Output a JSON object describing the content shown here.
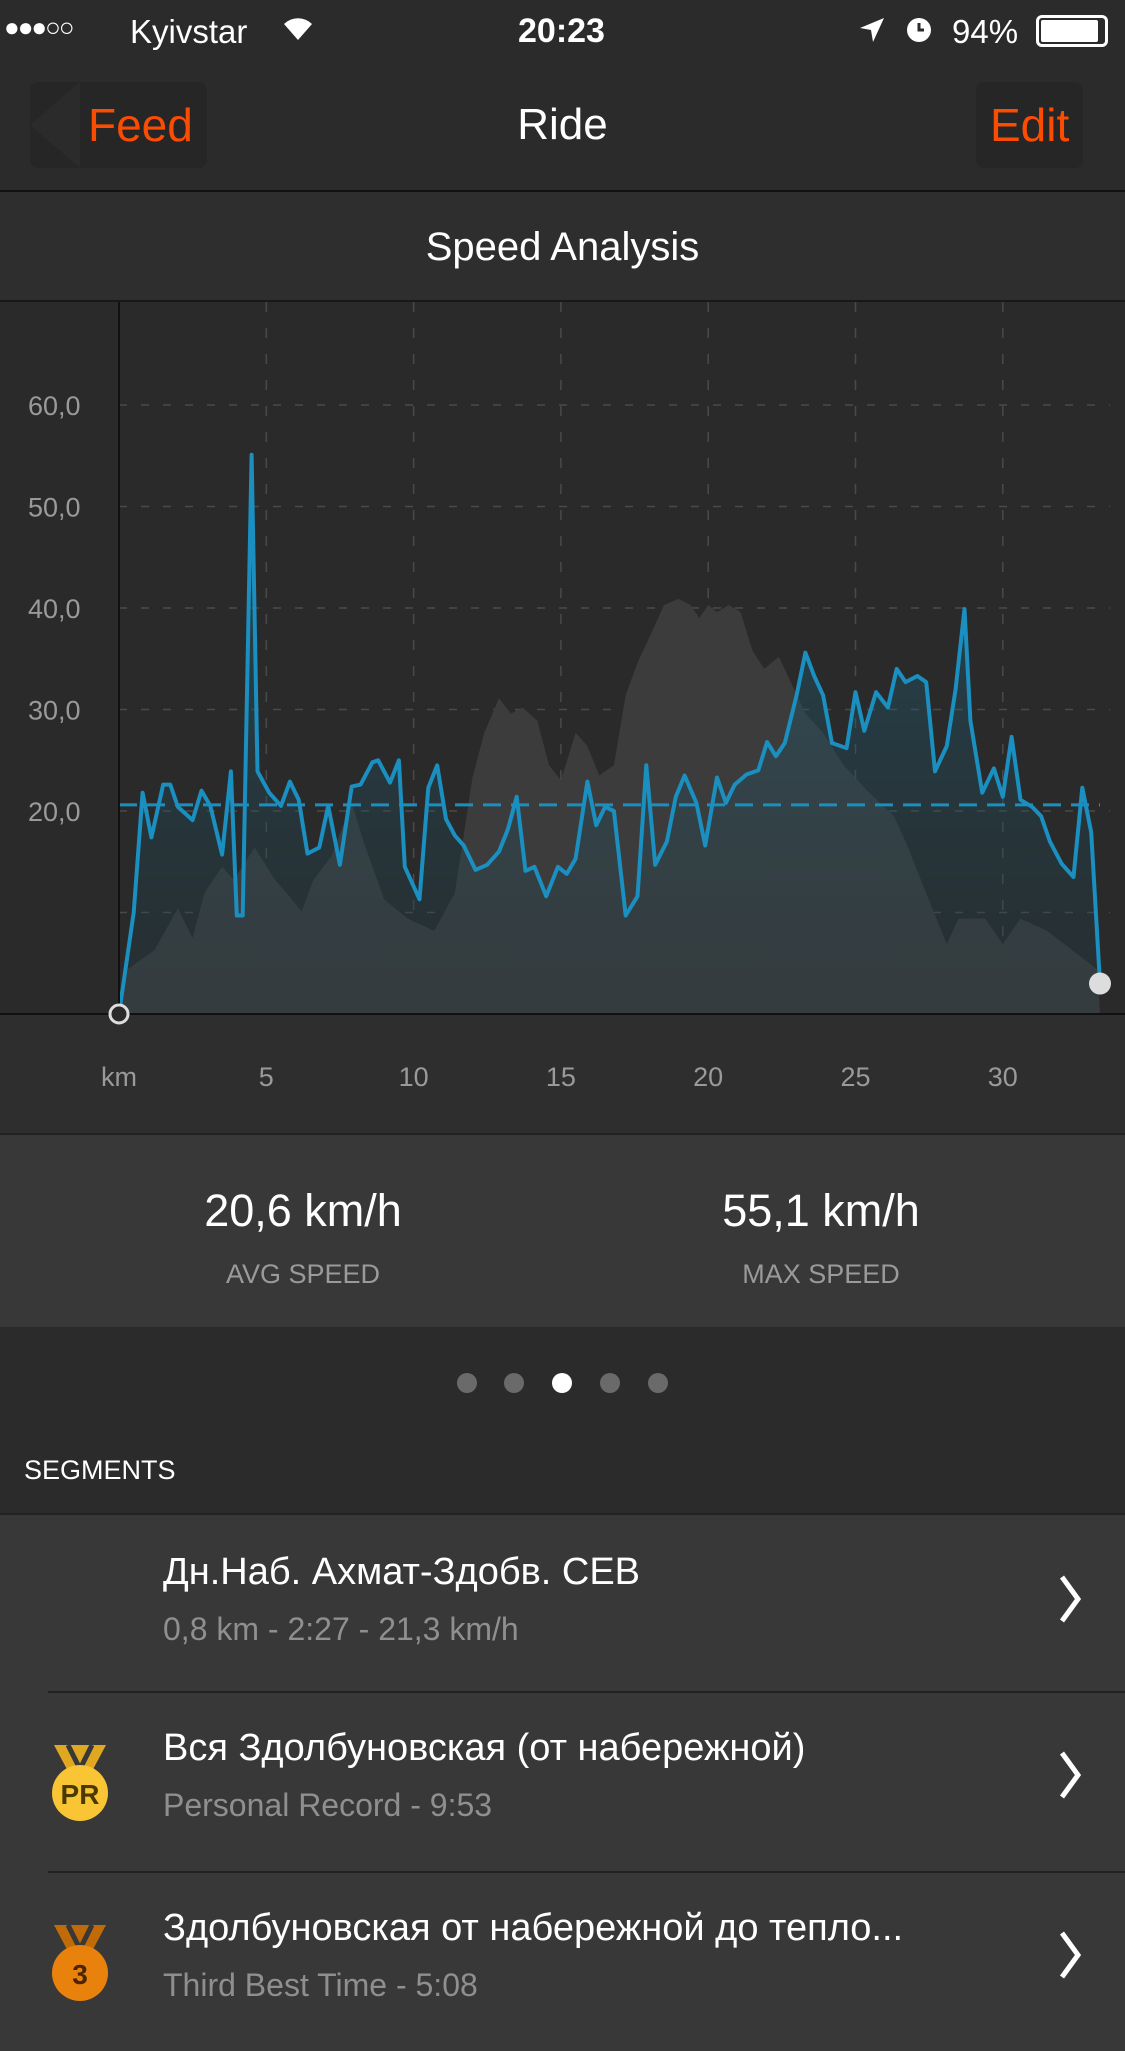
{
  "status_bar": {
    "carrier": "Kyivstar",
    "time": "20:23",
    "battery": "94%",
    "signal_dots": "●●●○○"
  },
  "nav": {
    "back_label": "Feed",
    "title": "Ride",
    "edit_label": "Edit"
  },
  "section_title": "Speed Analysis",
  "colors": {
    "accent": "#fc4c02",
    "line": "#1a8fc0",
    "pr_medal": "#f9c535",
    "bronze_medal": "#e8820c"
  },
  "chart_data": {
    "type": "line",
    "xlabel": "km",
    "x_ticks": [
      "5",
      "10",
      "15",
      "20",
      "25",
      "30"
    ],
    "y_ticks": [
      "20,0",
      "30,0",
      "40,0",
      "50,0",
      "60,0"
    ],
    "xlim": [
      0,
      33.3
    ],
    "ylim": [
      0,
      70
    ],
    "grid": true,
    "average_speed": 20.6,
    "speed": [
      [
        0,
        0
      ],
      [
        0.5,
        10
      ],
      [
        0.8,
        21.8
      ],
      [
        1.1,
        17.4
      ],
      [
        1.5,
        22.6
      ],
      [
        1.74,
        22.6
      ],
      [
        2,
        20.4
      ],
      [
        2.5,
        19.1
      ],
      [
        2.8,
        22
      ],
      [
        3.1,
        20.5
      ],
      [
        3.5,
        15.7
      ],
      [
        3.8,
        23.9
      ],
      [
        4,
        9.7
      ],
      [
        4.2,
        9.7
      ],
      [
        4.5,
        55.1
      ],
      [
        4.7,
        23.9
      ],
      [
        5.1,
        21.8
      ],
      [
        5.5,
        20.5
      ],
      [
        5.8,
        22.9
      ],
      [
        6.1,
        21.1
      ],
      [
        6.4,
        15.8
      ],
      [
        6.8,
        16.4
      ],
      [
        7.1,
        20.5
      ],
      [
        7.5,
        14.7
      ],
      [
        7.9,
        22.4
      ],
      [
        8.2,
        22.6
      ],
      [
        8.6,
        24.8
      ],
      [
        8.8,
        25
      ],
      [
        9.2,
        22.8
      ],
      [
        9.5,
        25
      ],
      [
        9.7,
        14.5
      ],
      [
        10.2,
        11.3
      ],
      [
        10.5,
        22.3
      ],
      [
        10.8,
        24.5
      ],
      [
        11.1,
        19.2
      ],
      [
        11.4,
        17.6
      ],
      [
        11.7,
        16.6
      ],
      [
        12.1,
        14.2
      ],
      [
        12.5,
        14.7
      ],
      [
        12.9,
        16
      ],
      [
        13.2,
        18.2
      ],
      [
        13.5,
        21.4
      ],
      [
        13.8,
        14.1
      ],
      [
        14.1,
        14.5
      ],
      [
        14.5,
        11.6
      ],
      [
        14.9,
        14.5
      ],
      [
        15.2,
        13.8
      ],
      [
        15.5,
        15.3
      ],
      [
        15.9,
        22.9
      ],
      [
        16.2,
        18.6
      ],
      [
        16.5,
        20.4
      ],
      [
        16.8,
        20
      ],
      [
        17.2,
        9.7
      ],
      [
        17.6,
        11.6
      ],
      [
        17.9,
        24.5
      ],
      [
        18.2,
        14.7
      ],
      [
        18.6,
        17
      ],
      [
        18.9,
        21.4
      ],
      [
        19.2,
        23.5
      ],
      [
        19.6,
        20.8
      ],
      [
        19.9,
        16.6
      ],
      [
        20.3,
        23.3
      ],
      [
        20.6,
        20.8
      ],
      [
        20.9,
        22.6
      ],
      [
        21.3,
        23.6
      ],
      [
        21.7,
        24
      ],
      [
        22,
        26.8
      ],
      [
        22.3,
        25.4
      ],
      [
        22.6,
        26.7
      ],
      [
        23,
        31.4
      ],
      [
        23.3,
        35.6
      ],
      [
        23.6,
        33.3
      ],
      [
        23.9,
        31.4
      ],
      [
        24.2,
        26.7
      ],
      [
        24.7,
        26.2
      ],
      [
        25,
        31.7
      ],
      [
        25.3,
        27.9
      ],
      [
        25.7,
        31.7
      ],
      [
        26.1,
        30.2
      ],
      [
        26.4,
        34
      ],
      [
        26.7,
        32.7
      ],
      [
        27.1,
        33.3
      ],
      [
        27.4,
        32.7
      ],
      [
        27.7,
        23.9
      ],
      [
        28.1,
        26.4
      ],
      [
        28.4,
        32
      ],
      [
        28.7,
        39.9
      ],
      [
        28.9,
        28.9
      ],
      [
        29.3,
        21.8
      ],
      [
        29.7,
        24.2
      ],
      [
        30,
        21.4
      ],
      [
        30.3,
        27.3
      ],
      [
        30.6,
        21.1
      ],
      [
        31,
        20.4
      ],
      [
        31.3,
        19.5
      ],
      [
        31.6,
        17
      ],
      [
        32,
        14.8
      ],
      [
        32.4,
        13.5
      ],
      [
        32.7,
        22.3
      ],
      [
        33,
        17.9
      ],
      [
        33.3,
        3
      ]
    ],
    "elevation_profile": [
      [
        0,
        0
      ],
      [
        0.3,
        4.4
      ],
      [
        1.2,
        6.3
      ],
      [
        2,
        10.4
      ],
      [
        2.5,
        7.5
      ],
      [
        2.9,
        11.9
      ],
      [
        3.5,
        14.5
      ],
      [
        3.9,
        13.2
      ],
      [
        4.6,
        16.4
      ],
      [
        5.3,
        13.2
      ],
      [
        5.7,
        11.9
      ],
      [
        6.2,
        10.1
      ],
      [
        6.6,
        13.2
      ],
      [
        7.2,
        15.5
      ],
      [
        7.9,
        20.8
      ],
      [
        8.3,
        17
      ],
      [
        9,
        11.3
      ],
      [
        9.8,
        9.4
      ],
      [
        10.7,
        8.2
      ],
      [
        11.4,
        11.9
      ],
      [
        12,
        23.3
      ],
      [
        12.4,
        27.7
      ],
      [
        12.9,
        31.1
      ],
      [
        13.3,
        29.6
      ],
      [
        13.7,
        30.2
      ],
      [
        14.2,
        28.9
      ],
      [
        14.6,
        24.5
      ],
      [
        15,
        23
      ],
      [
        15.5,
        27.7
      ],
      [
        15.9,
        26.4
      ],
      [
        16.3,
        23.5
      ],
      [
        16.8,
        24.5
      ],
      [
        17.2,
        31.4
      ],
      [
        17.6,
        34.6
      ],
      [
        18.1,
        37.7
      ],
      [
        18.5,
        40.3
      ],
      [
        19,
        40.9
      ],
      [
        19.4,
        40.3
      ],
      [
        19.7,
        39
      ],
      [
        20,
        40.3
      ],
      [
        20.3,
        39.6
      ],
      [
        20.7,
        40.3
      ],
      [
        21.1,
        39.6
      ],
      [
        21.5,
        35.8
      ],
      [
        21.9,
        34
      ],
      [
        22.4,
        35.2
      ],
      [
        22.9,
        32.1
      ],
      [
        23.3,
        29.6
      ],
      [
        23.9,
        27.7
      ],
      [
        24.6,
        24.5
      ],
      [
        25.4,
        22
      ],
      [
        26.3,
        19.5
      ],
      [
        26.7,
        17
      ],
      [
        27.4,
        11.9
      ],
      [
        28.1,
        6.9
      ],
      [
        28.5,
        9.4
      ],
      [
        29.4,
        9.4
      ],
      [
        30,
        6.9
      ],
      [
        30.6,
        9.4
      ],
      [
        31.5,
        8.2
      ],
      [
        33.2,
        4.4
      ],
      [
        33.3,
        0
      ]
    ]
  },
  "stats": [
    {
      "value": "20,6 km/h",
      "label": "AVG SPEED"
    },
    {
      "value": "55,1 km/h",
      "label": "MAX SPEED"
    }
  ],
  "pager": {
    "count": 5,
    "active": 2
  },
  "segments": {
    "header": "SEGMENTS",
    "items": [
      {
        "title": "Дн.Наб. Ахмат-Здобв. CEB",
        "subtitle": "0,8 km - 2:27 - 21,3 km/h",
        "medal": ""
      },
      {
        "title": "Вся Здолбуновская (от набережной)",
        "subtitle": "Personal Record - 9:53",
        "medal": "PR"
      },
      {
        "title": "Здолбуновская от набережной до тепло...",
        "subtitle": "Third Best Time - 5:08",
        "medal": "3"
      }
    ]
  }
}
